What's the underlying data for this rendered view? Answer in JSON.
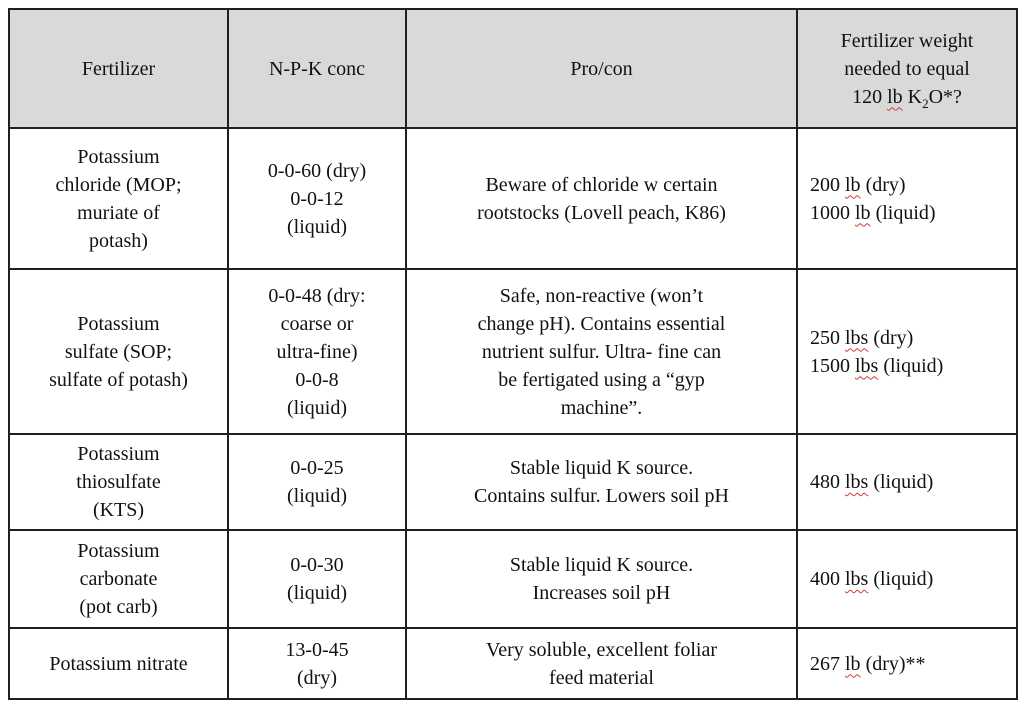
{
  "colors": {
    "header-bg": "#d9d9d9",
    "border": "#1f1f1f",
    "text": "#111111",
    "squiggle": "#d23b33",
    "page-bg": "#ffffff"
  },
  "table": {
    "header": {
      "fertilizer": "Fertilizer",
      "npk": "N-P-K conc",
      "procon": "Pro/con",
      "weight_lines": [
        "Fertilizer weight",
        "needed to equal"
      ],
      "weight_line3": {
        "pre": "120 ",
        "unit": "lb",
        "mid": " K",
        "sub": "2",
        "post": "O*?"
      }
    },
    "rows": [
      {
        "height": 141,
        "fertilizer": [
          "Potassium",
          "chloride (MOP;",
          "muriate of",
          "potash)"
        ],
        "npk": [
          "0-0-60 (dry)",
          "0-0-12",
          "(liquid)"
        ],
        "procon": [
          "Beware of chloride w certain",
          "rootstocks (Lovell peach, K86)"
        ],
        "weight": [
          {
            "amount": "200 ",
            "unit": "lb",
            "rest": " (dry)"
          },
          {
            "amount": "1000 ",
            "unit": "lb",
            "rest": " (liquid)"
          }
        ]
      },
      {
        "height": 165,
        "fertilizer": [
          "Potassium",
          "sulfate (SOP;",
          "sulfate of potash)"
        ],
        "npk": [
          "0-0-48 (dry:",
          "coarse or",
          "ultra-fine)",
          "0-0-8",
          "(liquid)"
        ],
        "procon": [
          "Safe, non-reactive (won’t",
          "change pH). Contains essential",
          "nutrient sulfur. Ultra- fine can",
          "be fertigated using a “gyp",
          "machine”."
        ],
        "weight": [
          {
            "amount": "250 ",
            "unit": "lbs",
            "rest": " (dry)"
          },
          {
            "amount": "1500 ",
            "unit": "lbs",
            "rest": " (liquid)"
          }
        ]
      },
      {
        "height": 96,
        "fertilizer": [
          "Potassium",
          "thiosulfate",
          "(KTS)"
        ],
        "npk": [
          "0-0-25",
          "(liquid)"
        ],
        "procon": [
          "Stable liquid K source.",
          "Contains sulfur. Lowers soil pH"
        ],
        "weight": [
          {
            "amount": "480 ",
            "unit": "lbs",
            "rest": " (liquid)"
          }
        ]
      },
      {
        "height": 98,
        "fertilizer": [
          "Potassium",
          "carbonate",
          "(pot carb)"
        ],
        "npk": [
          "0-0-30",
          "(liquid)"
        ],
        "procon": [
          "Stable liquid K source.",
          "Increases soil pH"
        ],
        "weight": [
          {
            "amount": "400 ",
            "unit": "lbs",
            "rest": " (liquid)"
          }
        ]
      },
      {
        "height": 71,
        "fertilizer": [
          "Potassium nitrate"
        ],
        "npk": [
          "13-0-45",
          "(dry)"
        ],
        "procon": [
          "Very soluble, excellent foliar",
          "feed material"
        ],
        "weight": [
          {
            "amount": "267 ",
            "unit": "lb",
            "rest": " (dry)**"
          }
        ]
      }
    ]
  }
}
